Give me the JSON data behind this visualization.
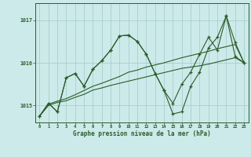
{
  "xlabel": "Graphe pression niveau de la mer (hPa)",
  "bg_color": "#cdeaea",
  "grid_color": "#a8cece",
  "line_color": "#2a5c2a",
  "xticks": [
    0,
    1,
    2,
    3,
    4,
    5,
    6,
    7,
    8,
    9,
    10,
    11,
    12,
    13,
    14,
    15,
    16,
    17,
    18,
    19,
    20,
    21,
    22,
    23
  ],
  "yticks": [
    1015,
    1016,
    1017
  ],
  "ylim": [
    1014.6,
    1017.4
  ],
  "xlim": [
    -0.5,
    23.5
  ],
  "s1": [
    1014.75,
    1015.05,
    1014.85,
    1015.65,
    1015.75,
    1015.45,
    1015.85,
    1016.05,
    1016.3,
    1016.63,
    1016.65,
    1016.5,
    1016.2,
    1015.75,
    1015.35,
    1015.05,
    1015.5,
    1015.78,
    1016.2,
    1016.6,
    1016.3,
    1017.1,
    1016.48,
    1016.0
  ],
  "s2": [
    1014.75,
    1015.05,
    1014.85,
    1015.65,
    1015.75,
    1015.45,
    1015.85,
    1016.05,
    1016.3,
    1016.63,
    1016.65,
    1016.5,
    1016.2,
    1015.75,
    1015.35,
    1014.8,
    1014.85,
    1015.45,
    1015.78,
    1016.35,
    1016.6,
    1017.1,
    1016.15,
    1016.0
  ],
  "s3": [
    1014.75,
    1015.03,
    1015.1,
    1015.16,
    1015.25,
    1015.35,
    1015.45,
    1015.52,
    1015.6,
    1015.68,
    1015.78,
    1015.83,
    1015.9,
    1015.95,
    1016.0,
    1016.06,
    1016.12,
    1016.17,
    1016.22,
    1016.27,
    1016.33,
    1016.38,
    1016.43,
    1016.0
  ],
  "s4": [
    1014.75,
    1015.0,
    1015.07,
    1015.11,
    1015.19,
    1015.26,
    1015.36,
    1015.41,
    1015.47,
    1015.52,
    1015.57,
    1015.62,
    1015.67,
    1015.72,
    1015.77,
    1015.82,
    1015.87,
    1015.9,
    1015.93,
    1015.97,
    1016.02,
    1016.07,
    1016.12,
    1016.0
  ]
}
